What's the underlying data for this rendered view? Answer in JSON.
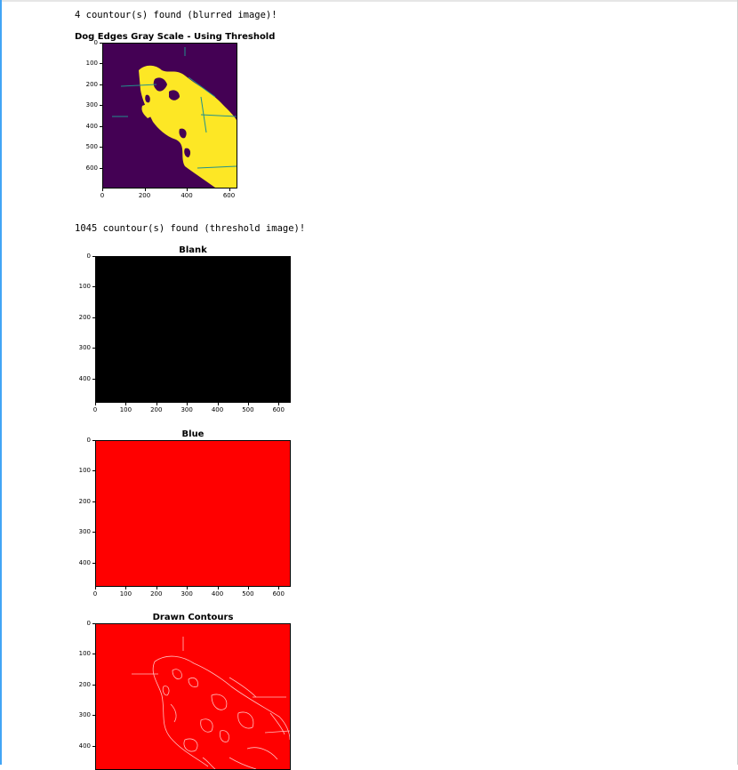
{
  "outputs": {
    "blurred_line": "4 countour(s) found (blurred image)!",
    "threshold_line": "1045 countour(s) found (threshold image)!"
  },
  "colors": {
    "viridis_dark": "#440154",
    "viridis_yellow": "#fde725",
    "viridis_teal": "#21918c",
    "black": "#000000",
    "red": "#ff0000",
    "contour_line": "#ffc0c0",
    "notebook_accent": "#42a5f5"
  },
  "chart_data": [
    {
      "type": "image",
      "title": "Dog Edges Gray Scale - Using Threshold",
      "colormap": "viridis",
      "x_ticks": [
        0,
        200,
        400,
        600
      ],
      "y_ticks": [
        0,
        100,
        200,
        300,
        400,
        500,
        600
      ],
      "xlim": [
        0,
        640
      ],
      "ylim": [
        700,
        0
      ]
    },
    {
      "type": "image",
      "title": "Blank",
      "fill": "black",
      "x_ticks": [
        0,
        100,
        200,
        300,
        400,
        500,
        600
      ],
      "y_ticks": [
        0,
        100,
        200,
        300,
        400
      ],
      "xlim": [
        0,
        640
      ],
      "ylim": [
        480,
        0
      ]
    },
    {
      "type": "image",
      "title": "Blue",
      "fill": "red",
      "x_ticks": [
        0,
        100,
        200,
        300,
        400,
        500,
        600
      ],
      "y_ticks": [
        0,
        100,
        200,
        300,
        400
      ],
      "xlim": [
        0,
        640
      ],
      "ylim": [
        480,
        0
      ]
    },
    {
      "type": "image",
      "title": "Drawn Contours",
      "fill": "red",
      "overlay": "contours",
      "x_ticks": [],
      "y_ticks": [
        0,
        100,
        200,
        300,
        400
      ],
      "xlim": [
        0,
        640
      ],
      "ylim": [
        480,
        0
      ]
    }
  ]
}
